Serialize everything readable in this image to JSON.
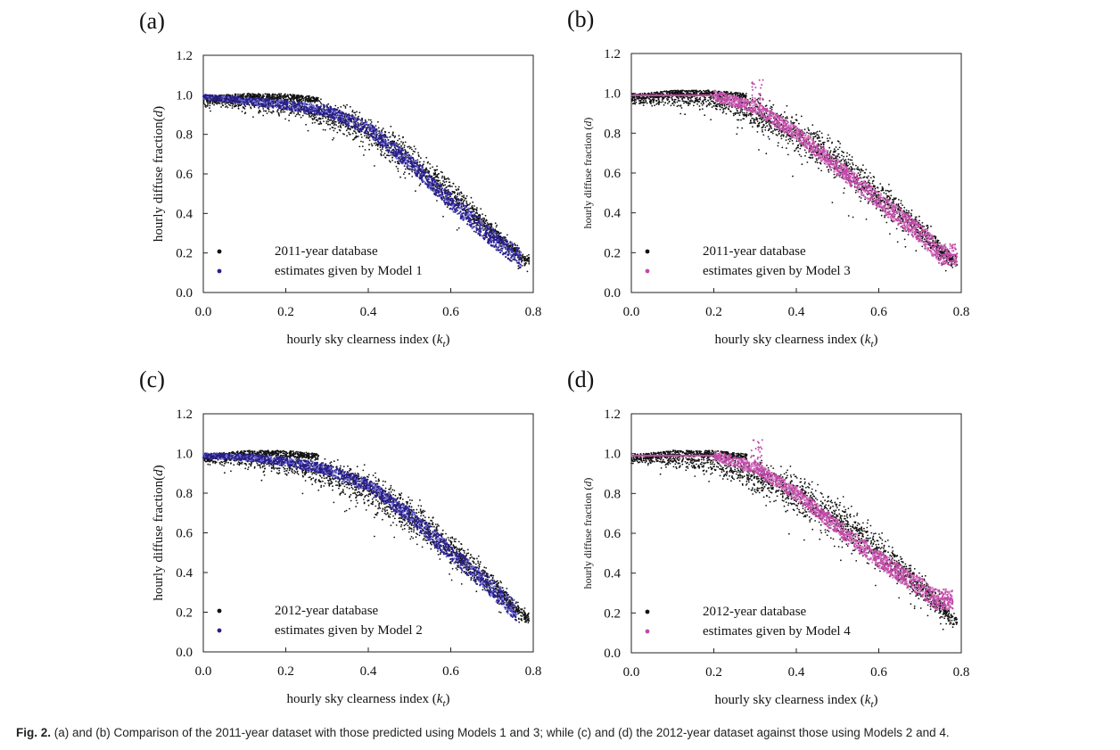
{
  "caption": {
    "label": "Fig. 2.",
    "text": " (a) and (b) Comparison of the 2011-year dataset with those predicted using Models 1 and 3; while (c) and (d) the 2012-year dataset against those using Models 2 and 4."
  },
  "colors": {
    "observed": "#111111",
    "model_blue": "#2a1f8c",
    "model_blue_light": "#6f6fd8",
    "model_magenta": "#c24aa8",
    "model_magenta_light": "#d98cc8"
  },
  "chart_data": [
    {
      "id": "a",
      "type": "scatter",
      "panel_label": "(a)",
      "xlabel": "hourly sky clearness index (k_t)",
      "xlabel_main": "hourly sky clearness index (",
      "xlabel_var": "k",
      "xlabel_sub": "t",
      "xlabel_close": ")",
      "ylabel": "hourly diffuse fraction(d)",
      "ylabel_main": "hourly diffuse fraction(",
      "ylabel_var": "d",
      "ylabel_close": ")",
      "xlim": [
        0.0,
        0.8
      ],
      "ylim": [
        0.0,
        1.2
      ],
      "xticks": [
        "0.0",
        "0.2",
        "0.4",
        "0.6",
        "0.8"
      ],
      "yticks": [
        "0.0",
        "0.2",
        "0.4",
        "0.6",
        "0.8",
        "1.0",
        "1.2"
      ],
      "legend_position": "bottom-left",
      "series": [
        {
          "name": "2011-year database",
          "kind": "observed",
          "color": "#111111"
        },
        {
          "name": "estimates given by Model 1",
          "kind": "model-smooth",
          "color": "#2a1f8c",
          "curve": [
            [
              0.0,
              0.99
            ],
            [
              0.1,
              0.97
            ],
            [
              0.2,
              0.95
            ],
            [
              0.3,
              0.92
            ],
            [
              0.4,
              0.83
            ],
            [
              0.5,
              0.66
            ],
            [
              0.6,
              0.46
            ],
            [
              0.7,
              0.28
            ],
            [
              0.77,
              0.17
            ]
          ]
        }
      ],
      "observed_upper_envelope": [
        [
          0.0,
          1.0
        ],
        [
          0.1,
          1.01
        ],
        [
          0.2,
          1.01
        ],
        [
          0.3,
          0.99
        ],
        [
          0.4,
          0.93
        ],
        [
          0.5,
          0.8
        ],
        [
          0.6,
          0.6
        ],
        [
          0.7,
          0.38
        ],
        [
          0.78,
          0.2
        ]
      ],
      "observed_lower_envelope": [
        [
          0.02,
          0.9
        ],
        [
          0.1,
          0.87
        ],
        [
          0.2,
          0.83
        ],
        [
          0.3,
          0.75
        ],
        [
          0.4,
          0.62
        ],
        [
          0.5,
          0.47
        ],
        [
          0.6,
          0.33
        ],
        [
          0.7,
          0.2
        ],
        [
          0.78,
          0.1
        ]
      ]
    },
    {
      "id": "b",
      "type": "scatter",
      "panel_label": "(b)",
      "xlabel": "hourly sky clearness index (k_t)",
      "xlabel_main": "hourly sky clearness index (",
      "xlabel_var": "k",
      "xlabel_sub": "t",
      "xlabel_close": ")",
      "ylabel": "hourly diffuse fraction (d)",
      "ylabel_main": "hourly diffuse fraction (",
      "ylabel_var": "d",
      "ylabel_close": ")",
      "xlim": [
        0.0,
        0.8
      ],
      "ylim": [
        0.0,
        1.2
      ],
      "xticks": [
        "0.0",
        "0.2",
        "0.4",
        "0.6",
        "0.8"
      ],
      "yticks": [
        "0.0",
        "0.2",
        "0.4",
        "0.6",
        "0.8",
        "1.0",
        "1.2"
      ],
      "legend_position": "bottom-left",
      "series": [
        {
          "name": "2011-year database",
          "kind": "observed",
          "color": "#111111"
        },
        {
          "name": "estimates given by Model 3",
          "kind": "model-piecewise",
          "color": "#c24aa8",
          "curve": [
            [
              0.0,
              0.99
            ],
            [
              0.2,
              0.99
            ],
            [
              0.3,
              0.93
            ],
            [
              0.4,
              0.8
            ],
            [
              0.5,
              0.63
            ],
            [
              0.6,
              0.46
            ],
            [
              0.7,
              0.3
            ],
            [
              0.75,
              0.19
            ],
            [
              0.79,
              0.19
            ]
          ]
        }
      ],
      "observed_upper_envelope": [
        [
          0.0,
          1.0
        ],
        [
          0.1,
          1.02
        ],
        [
          0.2,
          1.02
        ],
        [
          0.3,
          1.0
        ],
        [
          0.4,
          0.93
        ],
        [
          0.5,
          0.8
        ],
        [
          0.6,
          0.6
        ],
        [
          0.7,
          0.4
        ],
        [
          0.78,
          0.2
        ]
      ],
      "observed_lower_envelope": [
        [
          0.02,
          0.9
        ],
        [
          0.1,
          0.9
        ],
        [
          0.2,
          0.86
        ],
        [
          0.3,
          0.72
        ],
        [
          0.4,
          0.56
        ],
        [
          0.5,
          0.42
        ],
        [
          0.6,
          0.29
        ],
        [
          0.7,
          0.17
        ],
        [
          0.78,
          0.08
        ]
      ]
    },
    {
      "id": "c",
      "type": "scatter",
      "panel_label": "(c)",
      "xlabel": "hourly sky clearness index (k_t)",
      "xlabel_main": "hourly sky clearness index (",
      "xlabel_var": "k",
      "xlabel_sub": "t",
      "xlabel_close": ")",
      "ylabel": "hourly diffuse fraction(d)",
      "ylabel_main": "hourly diffuse fraction(",
      "ylabel_var": "d",
      "ylabel_close": ")",
      "xlim": [
        0.0,
        0.8
      ],
      "ylim": [
        0.0,
        1.2
      ],
      "xticks": [
        "0.0",
        "0.2",
        "0.4",
        "0.6",
        "0.8"
      ],
      "yticks": [
        "0.0",
        "0.2",
        "0.4",
        "0.6",
        "0.8",
        "1.0",
        "1.2"
      ],
      "legend_position": "bottom-left",
      "series": [
        {
          "name": "2012-year database",
          "kind": "observed",
          "color": "#111111"
        },
        {
          "name": "estimates given by Model 2",
          "kind": "model-smooth",
          "color": "#2a1f8c",
          "curve": [
            [
              0.0,
              0.99
            ],
            [
              0.1,
              0.98
            ],
            [
              0.2,
              0.96
            ],
            [
              0.3,
              0.92
            ],
            [
              0.4,
              0.84
            ],
            [
              0.5,
              0.69
            ],
            [
              0.6,
              0.5
            ],
            [
              0.7,
              0.32
            ],
            [
              0.76,
              0.2
            ]
          ]
        }
      ],
      "observed_upper_envelope": [
        [
          0.0,
          1.0
        ],
        [
          0.1,
          1.02
        ],
        [
          0.2,
          1.02
        ],
        [
          0.3,
          1.0
        ],
        [
          0.4,
          0.94
        ],
        [
          0.5,
          0.82
        ],
        [
          0.6,
          0.63
        ],
        [
          0.7,
          0.42
        ],
        [
          0.78,
          0.22
        ]
      ],
      "observed_lower_envelope": [
        [
          0.02,
          0.91
        ],
        [
          0.1,
          0.88
        ],
        [
          0.2,
          0.82
        ],
        [
          0.3,
          0.74
        ],
        [
          0.4,
          0.6
        ],
        [
          0.5,
          0.47
        ],
        [
          0.6,
          0.34
        ],
        [
          0.7,
          0.2
        ],
        [
          0.78,
          0.1
        ]
      ]
    },
    {
      "id": "d",
      "type": "scatter",
      "panel_label": "(d)",
      "xlabel": "hourly sky clearness index (k_t)",
      "xlabel_main": "hourly sky clearness index (",
      "xlabel_var": "k",
      "xlabel_sub": "t",
      "xlabel_close": ")",
      "ylabel": "hourly diffuse fraction (d)",
      "ylabel_main": "hourly diffuse fraction (",
      "ylabel_var": "d",
      "ylabel_close": ")",
      "xlim": [
        0.0,
        0.8
      ],
      "ylim": [
        0.0,
        1.2
      ],
      "xticks": [
        "0.0",
        "0.2",
        "0.4",
        "0.6",
        "0.8"
      ],
      "yticks": [
        "0.0",
        "0.2",
        "0.4",
        "0.6",
        "0.8",
        "1.0",
        "1.2"
      ],
      "legend_position": "bottom-left",
      "series": [
        {
          "name": "2012-year database",
          "kind": "observed",
          "color": "#111111"
        },
        {
          "name": "estimates given by Model 4",
          "kind": "model-piecewise",
          "color": "#c24aa8",
          "curve": [
            [
              0.0,
              0.99
            ],
            [
              0.2,
              0.99
            ],
            [
              0.3,
              0.93
            ],
            [
              0.4,
              0.8
            ],
            [
              0.5,
              0.63
            ],
            [
              0.6,
              0.47
            ],
            [
              0.7,
              0.33
            ],
            [
              0.74,
              0.27
            ],
            [
              0.78,
              0.27
            ]
          ]
        }
      ],
      "observed_upper_envelope": [
        [
          0.0,
          1.0
        ],
        [
          0.1,
          1.02
        ],
        [
          0.2,
          1.02
        ],
        [
          0.3,
          1.0
        ],
        [
          0.4,
          0.94
        ],
        [
          0.5,
          0.82
        ],
        [
          0.6,
          0.63
        ],
        [
          0.7,
          0.42
        ],
        [
          0.78,
          0.22
        ]
      ],
      "observed_lower_envelope": [
        [
          0.02,
          0.91
        ],
        [
          0.1,
          0.88
        ],
        [
          0.2,
          0.84
        ],
        [
          0.3,
          0.7
        ],
        [
          0.4,
          0.55
        ],
        [
          0.5,
          0.42
        ],
        [
          0.6,
          0.3
        ],
        [
          0.7,
          0.18
        ],
        [
          0.78,
          0.08
        ]
      ]
    }
  ]
}
